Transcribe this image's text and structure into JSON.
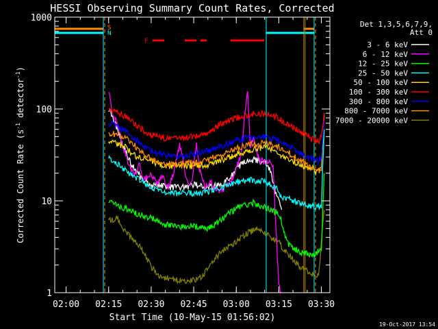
{
  "chart_data": {
    "type": "line",
    "title": "HESSI Observing Summary Count Rates, Corrected",
    "xlabel": "Start Time (10-May-15 01:56:02)",
    "ylabel_main": "Corrected Count Rate (s",
    "ylabel_sup1": "-1",
    "ylabel_mid": " detector",
    "ylabel_sup2": "-1",
    "ylabel_end": ")",
    "y_scale": "log",
    "ylim": [
      1,
      1000
    ],
    "xlim_minutes": [
      116,
      213
    ],
    "x_ticks": [
      {
        "m": 120,
        "label": "02:00"
      },
      {
        "m": 135,
        "label": "02:15"
      },
      {
        "m": 150,
        "label": "02:30"
      },
      {
        "m": 165,
        "label": "02:45"
      },
      {
        "m": 180,
        "label": "03:00"
      },
      {
        "m": 195,
        "label": "03:15"
      },
      {
        "m": 210,
        "label": "03:30"
      }
    ],
    "y_ticks": [
      {
        "v": 1,
        "label": "1"
      },
      {
        "v": 10,
        "label": "10"
      },
      {
        "v": 100,
        "label": "100"
      },
      {
        "v": 1000,
        "label": "1000"
      }
    ],
    "legend_header": [
      "Det 1,3,5,6,7,9,",
      "Att 0"
    ],
    "legend_placement": "right",
    "timestamp": "19-Oct-2017 13:54",
    "flag_labels": {
      "saa": "S",
      "night": "N",
      "flare": "F"
    },
    "series": [
      {
        "name": "3 - 6 keV",
        "color": "#ffffff",
        "points": [
          [
            135,
            100
          ],
          [
            137,
            75
          ],
          [
            140,
            40
          ],
          [
            143,
            25
          ],
          [
            147,
            17
          ],
          [
            150,
            15
          ],
          [
            153,
            15
          ],
          [
            157,
            14
          ],
          [
            160,
            14
          ],
          [
            163,
            14
          ],
          [
            165,
            15
          ],
          [
            170,
            14
          ],
          [
            175,
            15
          ],
          [
            178,
            18
          ],
          [
            181,
            24
          ],
          [
            184,
            28
          ],
          [
            187,
            28
          ],
          [
            190,
            26
          ],
          [
            192,
            22
          ],
          [
            194,
            12
          ],
          [
            196,
            8
          ]
        ]
      },
      {
        "name": "6 - 12 keV",
        "color": "#ff00ff",
        "points": [
          [
            135,
            160
          ],
          [
            136,
            100
          ],
          [
            138,
            70
          ],
          [
            140,
            40
          ],
          [
            142,
            25
          ],
          [
            144,
            19
          ],
          [
            146,
            25
          ],
          [
            147,
            17
          ],
          [
            150,
            20
          ],
          [
            152,
            15
          ],
          [
            154,
            19
          ],
          [
            156,
            14
          ],
          [
            158,
            20
          ],
          [
            160,
            40
          ],
          [
            161,
            32
          ],
          [
            162,
            18
          ],
          [
            164,
            14
          ],
          [
            166,
            40
          ],
          [
            167,
            22
          ],
          [
            169,
            14
          ],
          [
            171,
            16
          ],
          [
            173,
            13
          ],
          [
            175,
            13
          ],
          [
            178,
            16
          ],
          [
            180,
            22
          ],
          [
            182,
            35
          ],
          [
            183,
            90
          ],
          [
            184,
            160
          ],
          [
            185,
            38
          ],
          [
            186,
            50
          ],
          [
            188,
            28
          ],
          [
            190,
            26
          ],
          [
            192,
            28
          ],
          [
            193,
            24
          ],
          [
            194,
            5
          ],
          [
            195,
            1.2
          ],
          [
            196,
            1
          ]
        ]
      },
      {
        "name": "12 - 25 keV",
        "color": "#00ff00",
        "points": [
          [
            135,
            10
          ],
          [
            138,
            9
          ],
          [
            142,
            8
          ],
          [
            146,
            7
          ],
          [
            150,
            6.5
          ],
          [
            155,
            5.5
          ],
          [
            160,
            5.2
          ],
          [
            165,
            5.3
          ],
          [
            170,
            5
          ],
          [
            174,
            6
          ],
          [
            178,
            7.5
          ],
          [
            182,
            9
          ],
          [
            186,
            9.5
          ],
          [
            190,
            8.5
          ],
          [
            194,
            7.5
          ],
          [
            196,
            6
          ],
          [
            198,
            3.5
          ],
          [
            202,
            2.8
          ],
          [
            207,
            2.5
          ],
          [
            210,
            3
          ],
          [
            211,
            20
          ]
        ]
      },
      {
        "name": "25 - 50 keV",
        "color": "#00ffff",
        "points": [
          [
            135,
            30
          ],
          [
            138,
            25
          ],
          [
            142,
            20
          ],
          [
            146,
            17
          ],
          [
            150,
            14
          ],
          [
            155,
            12.5
          ],
          [
            160,
            12
          ],
          [
            165,
            12
          ],
          [
            170,
            12.5
          ],
          [
            175,
            14
          ],
          [
            180,
            16
          ],
          [
            185,
            17
          ],
          [
            190,
            16
          ],
          [
            194,
            14
          ],
          [
            196,
            11
          ],
          [
            200,
            10
          ],
          [
            205,
            9
          ],
          [
            208,
            8.5
          ],
          [
            210,
            9
          ],
          [
            211,
            60
          ]
        ]
      },
      {
        "name": "50 - 100 keV",
        "color": "#ffd700",
        "points": [
          [
            135,
            45
          ],
          [
            140,
            40
          ],
          [
            145,
            30
          ],
          [
            150,
            27
          ],
          [
            155,
            24
          ],
          [
            160,
            24
          ],
          [
            165,
            24
          ],
          [
            170,
            25
          ],
          [
            175,
            28
          ],
          [
            180,
            32
          ],
          [
            185,
            36
          ],
          [
            190,
            38
          ],
          [
            194,
            36
          ],
          [
            196,
            30
          ],
          [
            200,
            27
          ],
          [
            205,
            23
          ],
          [
            208,
            21
          ],
          [
            210,
            22
          ],
          [
            211,
            90
          ]
        ]
      },
      {
        "name": "100 - 300 keV",
        "color": "#ff0000",
        "points": [
          [
            135,
            100
          ],
          [
            138,
            92
          ],
          [
            142,
            80
          ],
          [
            146,
            62
          ],
          [
            150,
            52
          ],
          [
            155,
            48
          ],
          [
            160,
            48
          ],
          [
            165,
            50
          ],
          [
            170,
            55
          ],
          [
            175,
            70
          ],
          [
            180,
            80
          ],
          [
            185,
            88
          ],
          [
            190,
            88
          ],
          [
            194,
            82
          ],
          [
            198,
            70
          ],
          [
            202,
            58
          ],
          [
            206,
            48
          ],
          [
            209,
            44
          ],
          [
            210,
            50
          ],
          [
            211,
            90
          ]
        ]
      },
      {
        "name": "300 - 800 keV",
        "color": "#0000ff",
        "points": [
          [
            135,
            70
          ],
          [
            138,
            65
          ],
          [
            142,
            55
          ],
          [
            146,
            42
          ],
          [
            150,
            35
          ],
          [
            155,
            31
          ],
          [
            160,
            31
          ],
          [
            165,
            32
          ],
          [
            170,
            35
          ],
          [
            175,
            40
          ],
          [
            180,
            45
          ],
          [
            185,
            50
          ],
          [
            190,
            50
          ],
          [
            194,
            47
          ],
          [
            198,
            40
          ],
          [
            202,
            34
          ],
          [
            206,
            29
          ],
          [
            209,
            27
          ],
          [
            210,
            30
          ],
          [
            211,
            75
          ]
        ]
      },
      {
        "name": "800 - 7000 keV",
        "color": "#ff8c00",
        "points": [
          [
            135,
            55
          ],
          [
            138,
            52
          ],
          [
            142,
            46
          ],
          [
            146,
            35
          ],
          [
            150,
            29
          ],
          [
            155,
            25
          ],
          [
            160,
            25
          ],
          [
            165,
            26
          ],
          [
            170,
            28
          ],
          [
            175,
            32
          ],
          [
            180,
            37
          ],
          [
            185,
            42
          ],
          [
            190,
            42
          ],
          [
            194,
            40
          ],
          [
            198,
            34
          ],
          [
            202,
            28
          ],
          [
            206,
            24
          ],
          [
            209,
            21
          ],
          [
            210,
            23
          ],
          [
            211,
            85
          ]
        ]
      },
      {
        "name": "7000 - 20000 keV",
        "color": "#808000",
        "points": [
          [
            135,
            6
          ],
          [
            138,
            6.5
          ],
          [
            141,
            4.5
          ],
          [
            145,
            3.5
          ],
          [
            148,
            2.5
          ],
          [
            150,
            1.9
          ],
          [
            153,
            1.5
          ],
          [
            158,
            1.4
          ],
          [
            163,
            1.3
          ],
          [
            168,
            1.5
          ],
          [
            172,
            2.3
          ],
          [
            176,
            3
          ],
          [
            180,
            3.5
          ],
          [
            184,
            4.5
          ],
          [
            188,
            5
          ],
          [
            192,
            4
          ],
          [
            195,
            3.5
          ],
          [
            198,
            2.7
          ],
          [
            202,
            2
          ],
          [
            206,
            1.6
          ],
          [
            209,
            1.5
          ],
          [
            211,
            8
          ]
        ]
      }
    ]
  }
}
